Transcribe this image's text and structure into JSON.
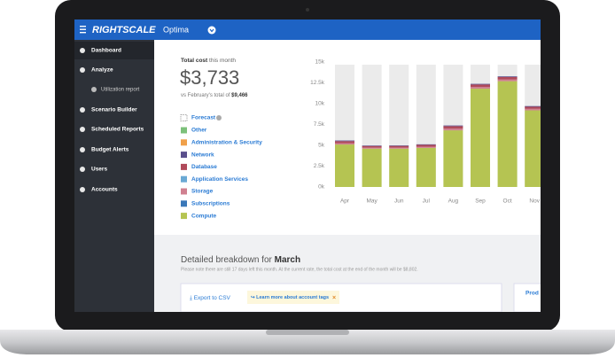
{
  "header": {
    "logo": "RIGHTSCALE",
    "product": "Optima"
  },
  "sidebar": [
    "Dashboard",
    "Analyze",
    "Utilization report",
    "Scenario Builder",
    "Scheduled Reports",
    "Budget Alerts",
    "Users",
    "Accounts"
  ],
  "summary": {
    "label_bold": "Total cost",
    "label_rest": " this month",
    "amount": "$3,733",
    "compare_text": "vs February's total of ",
    "compare_amount": "$9,466"
  },
  "forecast_label": "Forecast",
  "chart_data": {
    "type": "stacked-bar",
    "categories": [
      "Apr",
      "May",
      "Jun",
      "Jul",
      "Aug",
      "Sep",
      "Oct",
      "Nov"
    ],
    "ylim": [
      0,
      15000
    ],
    "yticks": [
      {
        "value": 0,
        "label": "0k"
      },
      {
        "value": 2500,
        "label": "2.5k"
      },
      {
        "value": 5000,
        "label": "5k"
      },
      {
        "value": 7500,
        "label": "7.5k"
      },
      {
        "value": 10000,
        "label": "10k"
      },
      {
        "value": 12500,
        "label": "12.5k"
      },
      {
        "value": 15000,
        "label": "15k"
      }
    ],
    "series": [
      {
        "name": "Other",
        "color": "#7cc07a",
        "values": [
          0,
          0,
          0,
          0,
          0,
          0,
          0,
          0
        ]
      },
      {
        "name": "Administration & Security",
        "color": "#f0a04a",
        "values": [
          0,
          0,
          0,
          0,
          0,
          0,
          0,
          0
        ]
      },
      {
        "name": "Network",
        "color": "#5a4f8c",
        "values": [
          80,
          60,
          60,
          60,
          80,
          80,
          80,
          80
        ]
      },
      {
        "name": "Database",
        "color": "#b04a5a",
        "values": [
          250,
          200,
          200,
          220,
          300,
          300,
          300,
          250
        ]
      },
      {
        "name": "Application Services",
        "color": "#6aa9d4",
        "values": [
          0,
          0,
          0,
          0,
          0,
          0,
          0,
          0
        ]
      },
      {
        "name": "Storage",
        "color": "#d08090",
        "values": [
          150,
          120,
          130,
          140,
          200,
          200,
          200,
          180
        ]
      },
      {
        "name": "Subscriptions",
        "color": "#3a78b8",
        "values": [
          0,
          0,
          0,
          0,
          0,
          0,
          0,
          0
        ]
      },
      {
        "name": "Compute",
        "color": "#b5c452",
        "values": [
          5100,
          4600,
          4600,
          4700,
          6800,
          11800,
          12700,
          9200
        ]
      }
    ]
  },
  "breakdown": {
    "title": "Detailed breakdown for ",
    "month": "March",
    "note": "Please note there are still 17 days left this month. At the current rate, the total cost at the end of the month will be $8,802.",
    "export": "Export to CSV",
    "learn": "Learn more about account tags",
    "tab": "Prod"
  }
}
